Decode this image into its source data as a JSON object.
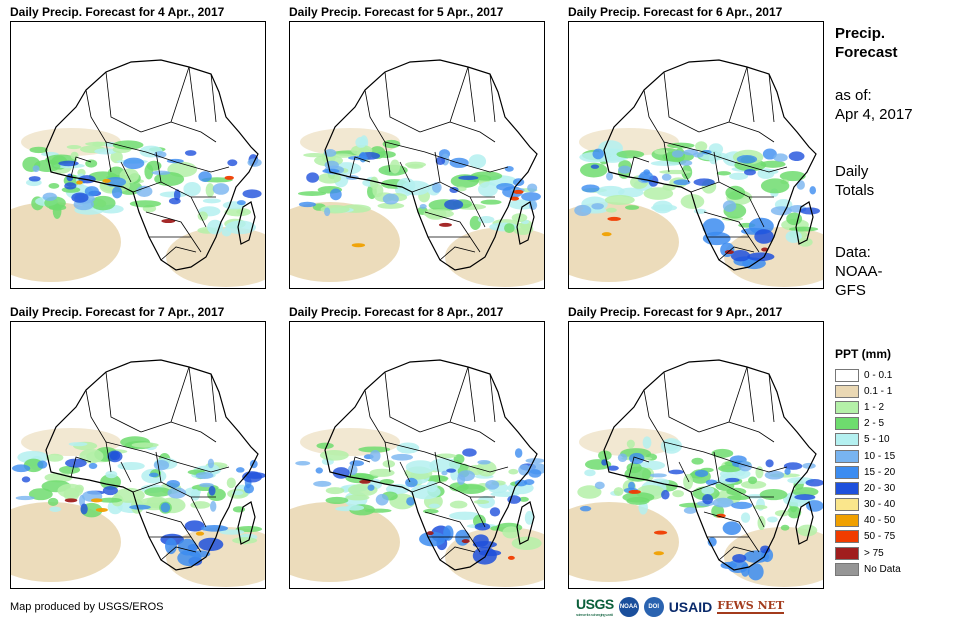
{
  "panels": [
    {
      "title": "Daily Precip. Forecast for 4 Apr., 2017"
    },
    {
      "title": "Daily Precip. Forecast for 5 Apr., 2017"
    },
    {
      "title": "Daily Precip. Forecast for 6 Apr., 2017"
    },
    {
      "title": "Daily Precip. Forecast for 7 Apr., 2017"
    },
    {
      "title": "Daily Precip. Forecast for 8 Apr., 2017"
    },
    {
      "title": "Daily Precip. Forecast for 9 Apr., 2017"
    }
  ],
  "sidebar": {
    "title_line1": "Precip.",
    "title_line2": "Forecast",
    "asof_label": "as of:",
    "asof_date": "Apr 4, 2017",
    "totals_line1": "Daily",
    "totals_line2": "Totals",
    "data_line1": "Data:",
    "data_line2": "NOAA-",
    "data_line3": "GFS"
  },
  "legend": {
    "title": "PPT (mm)",
    "items": [
      {
        "label": "0 - 0.1",
        "color": "#ffffff"
      },
      {
        "label": "0.1 - 1",
        "color": "#ead8b4"
      },
      {
        "label": "1 - 2",
        "color": "#b4f0a8"
      },
      {
        "label": "2 - 5",
        "color": "#6edc6e"
      },
      {
        "label": "5 - 10",
        "color": "#b4f0f0"
      },
      {
        "label": "10 - 15",
        "color": "#78b4f0"
      },
      {
        "label": "15 - 20",
        "color": "#3c8cf0"
      },
      {
        "label": "20 - 30",
        "color": "#1e50dc"
      },
      {
        "label": "30 - 40",
        "color": "#fae68c"
      },
      {
        "label": "40 - 50",
        "color": "#f0a000"
      },
      {
        "label": "50 - 75",
        "color": "#f03c00"
      },
      {
        "label": "> 75",
        "color": "#a01e1e"
      },
      {
        "label": "No Data",
        "color": "#969696"
      }
    ]
  },
  "credit": "Map produced by USGS/EROS",
  "logos": {
    "usgs": "USGS",
    "usgs_tagline": "science for a changing world",
    "noaa": "NOAA",
    "seal": "DOI",
    "usaid": "USAID",
    "fews": "FEWS NET"
  }
}
